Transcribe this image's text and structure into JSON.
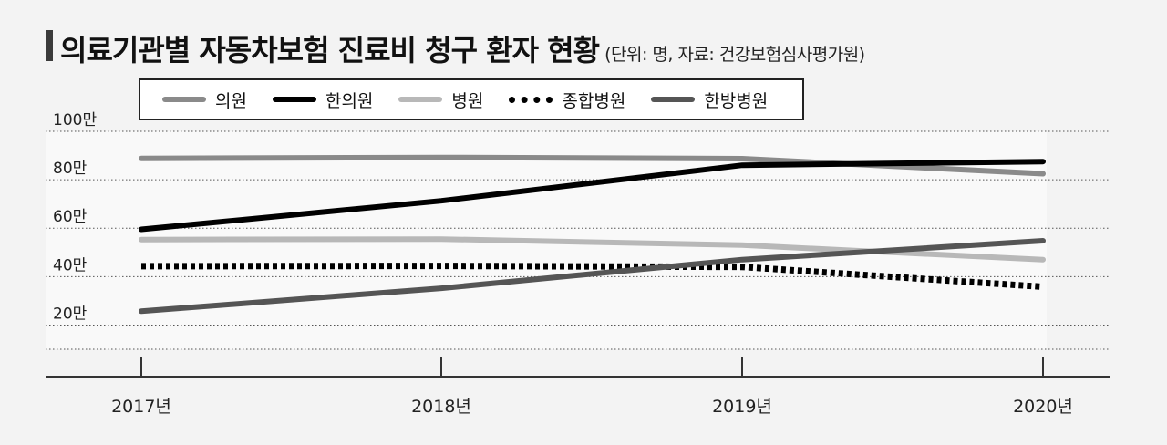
{
  "header": {
    "title": "의료기관별 자동차보험 진료비 청구 환자 현황",
    "subtitle": "(단위: 명, 자료: 건강보험심사평가원)"
  },
  "chart_data": {
    "type": "line",
    "x": [
      "2017년",
      "2018년",
      "2019년",
      "2020년"
    ],
    "y_ticks": [
      "20만",
      "40만",
      "60만",
      "80만",
      "100만"
    ],
    "y_tick_values": [
      200000,
      400000,
      600000,
      800000,
      1000000
    ],
    "ylim": [
      100000,
      1000000
    ],
    "grid": true,
    "legend_position": "top",
    "series": [
      {
        "name": "의원",
        "values": [
          888000,
          892000,
          887000,
          825000
        ],
        "color": "#8a8a8a",
        "style": "solid"
      },
      {
        "name": "한의원",
        "values": [
          595000,
          713000,
          860000,
          875000
        ],
        "color": "#000000",
        "style": "solid"
      },
      {
        "name": "병원",
        "values": [
          553000,
          555000,
          530000,
          470000
        ],
        "color": "#b8b8b8",
        "style": "solid"
      },
      {
        "name": "종합병원",
        "values": [
          443000,
          444000,
          440000,
          358000
        ],
        "color": "#000000",
        "style": "dotted"
      },
      {
        "name": "한방병원",
        "values": [
          257000,
          352000,
          470000,
          548000
        ],
        "color": "#555555",
        "style": "solid"
      }
    ]
  }
}
